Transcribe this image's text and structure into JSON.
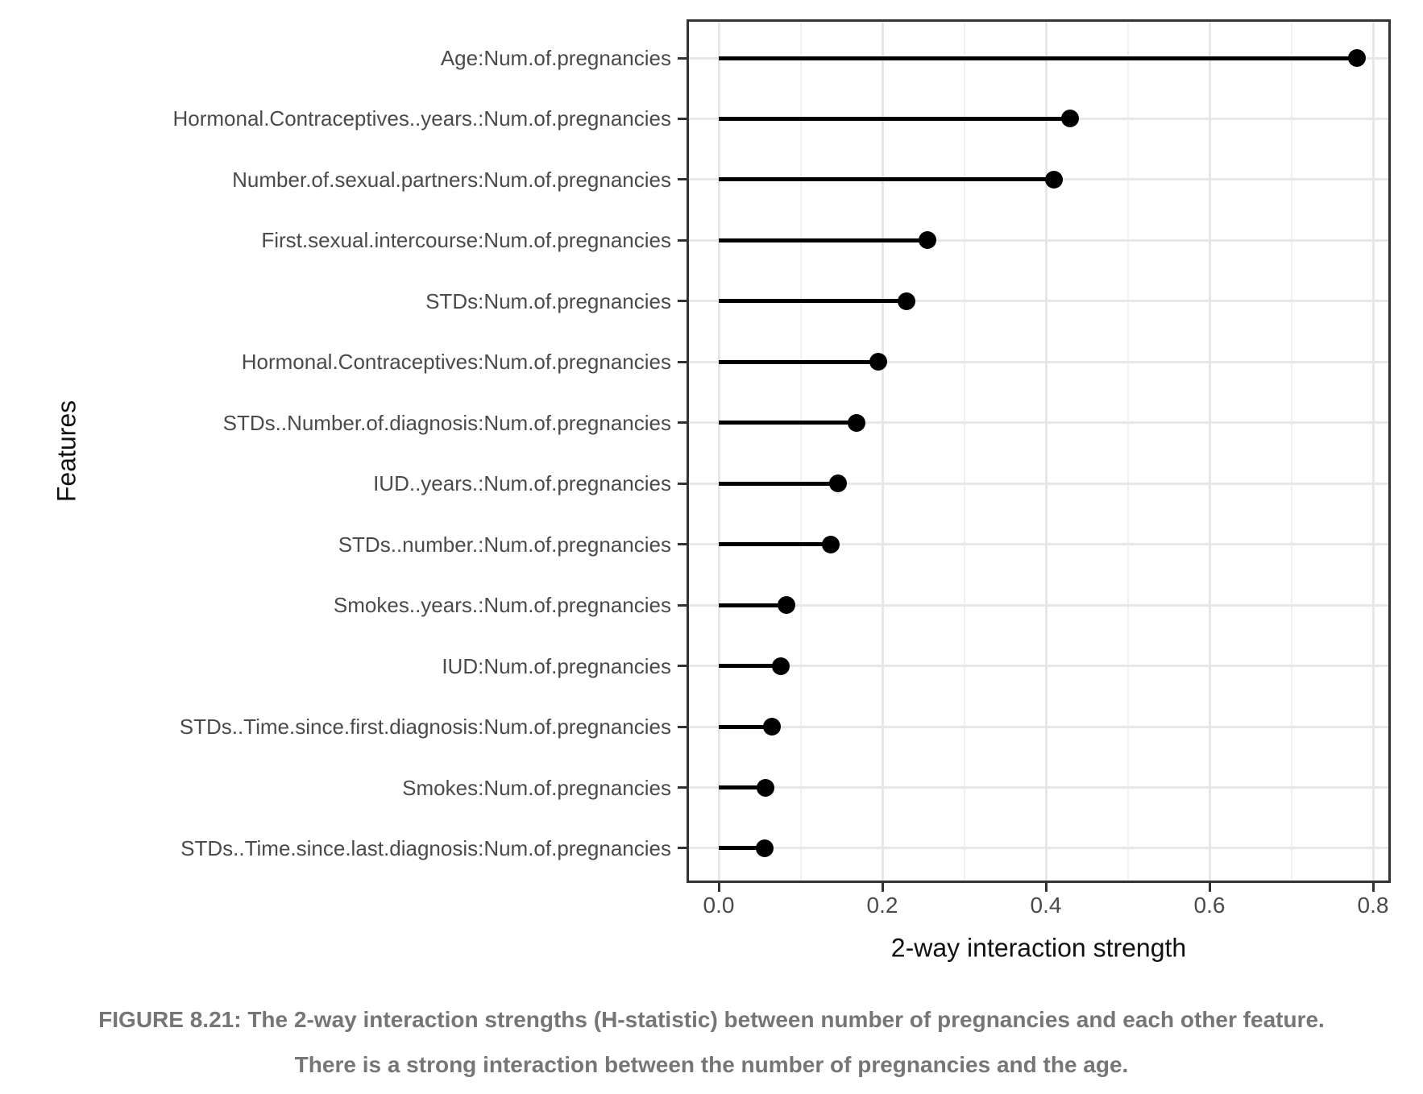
{
  "figure": {
    "caption": "FIGURE 8.21: The 2-way interaction strengths (H-statistic) between number of pregnancies and each other feature. There is a strong interaction between the number of pregnancies and the age."
  },
  "colors": {
    "point": "#000000",
    "segment": "#000000",
    "panel_border": "#333333",
    "grid_major": "#e7e7e7",
    "grid_minor": "#f0f0f0",
    "axis_text": "#4a4a4a",
    "axis_title": "#111111",
    "caption_text": "#767676",
    "background": "#ffffff"
  },
  "chart_data": {
    "type": "scatter",
    "variant": "horizontal-lollipop",
    "title": "",
    "xlabel": "2-way interaction strength",
    "ylabel": "Features",
    "categories": [
      "Age:Num.of.pregnancies",
      "Hormonal.Contraceptives..years.:Num.of.pregnancies",
      "Number.of.sexual.partners:Num.of.pregnancies",
      "First.sexual.intercourse:Num.of.pregnancies",
      "STDs:Num.of.pregnancies",
      "Hormonal.Contraceptives:Num.of.pregnancies",
      "STDs..Number.of.diagnosis:Num.of.pregnancies",
      "IUD..years.:Num.of.pregnancies",
      "STDs..number.:Num.of.pregnancies",
      "Smokes..years.:Num.of.pregnancies",
      "IUD:Num.of.pregnancies",
      "STDs..Time.since.first.diagnosis:Num.of.pregnancies",
      "Smokes:Num.of.pregnancies",
      "STDs..Time.since.last.diagnosis:Num.of.pregnancies"
    ],
    "values": [
      0.78,
      0.43,
      0.41,
      0.255,
      0.23,
      0.195,
      0.168,
      0.146,
      0.137,
      0.083,
      0.076,
      0.065,
      0.057,
      0.056
    ],
    "x_ticks": [
      0.0,
      0.2,
      0.4,
      0.6,
      0.8
    ],
    "x_tick_labels": [
      "0.0",
      "0.2",
      "0.4",
      "0.6",
      "0.8"
    ],
    "x_minor_gridlines": [
      0.1,
      0.3,
      0.5,
      0.7
    ],
    "xlim": [
      -0.035,
      0.82
    ],
    "baseline": 0.0,
    "grid": true,
    "legend": false,
    "orientation": "horizontal",
    "value_axis": "x"
  }
}
